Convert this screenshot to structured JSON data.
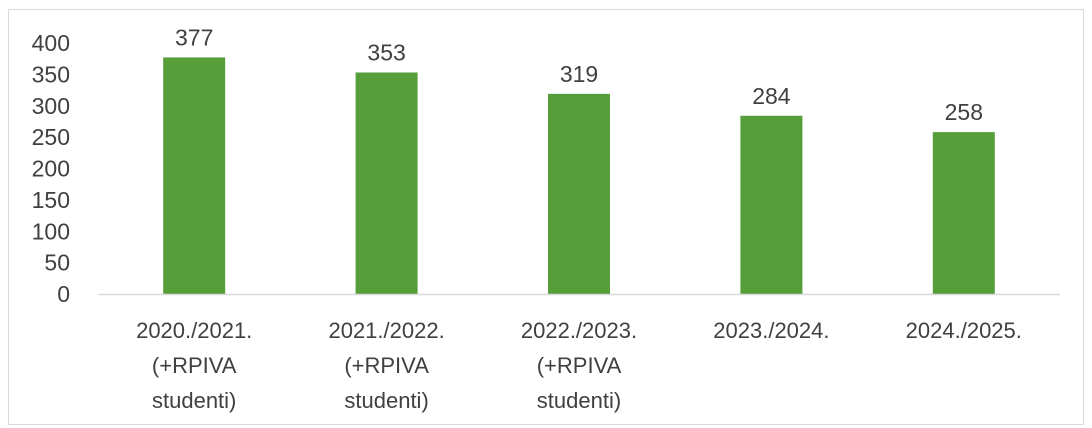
{
  "chart_data": {
    "type": "bar",
    "categories": [
      [
        "2020./2021.",
        "(+RPIVA",
        "studenti)"
      ],
      [
        "2021./2022.",
        "(+RPIVA",
        "studenti)"
      ],
      [
        "2022./2023.",
        "(+RPIVA",
        "studenti)"
      ],
      [
        "2023./2024."
      ],
      [
        "2024./2025."
      ]
    ],
    "values": [
      377,
      353,
      319,
      284,
      258
    ],
    "data_labels": [
      "377",
      "353",
      "319",
      "284",
      "258"
    ],
    "y_ticks": [
      "0",
      "50",
      "100",
      "150",
      "200",
      "250",
      "300",
      "350",
      "400"
    ],
    "ylim": [
      0,
      400
    ],
    "grid": false,
    "legend": "none",
    "bar_color": "#559e3a",
    "axis_color": "#d9d9d9",
    "text_color": "#404040"
  }
}
